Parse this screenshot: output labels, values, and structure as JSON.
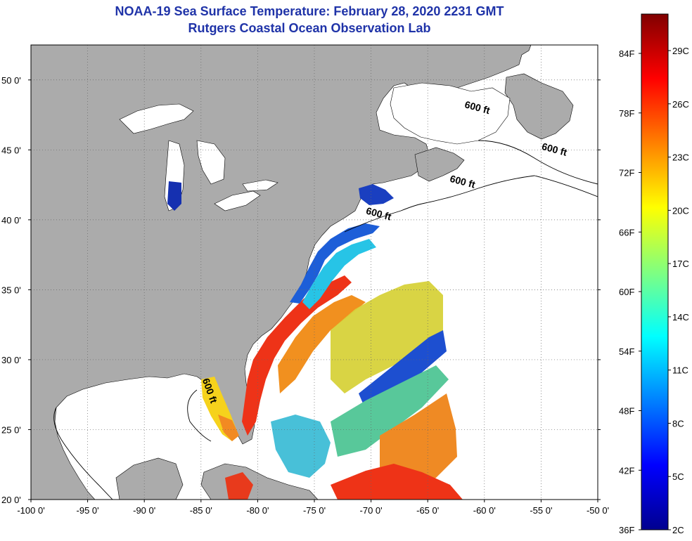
{
  "title": {
    "line1": "NOAA-19 Sea Surface Temperature:  February 28, 2020 2231 GMT",
    "line2": "Rutgers Coastal Ocean Observation Lab"
  },
  "map": {
    "lon_range": [
      -100,
      -50
    ],
    "lat_range": [
      20,
      52.5
    ],
    "grid": "dotted",
    "x_ticks": [
      {
        "value": -100,
        "label": "-100 0'"
      },
      {
        "value": -95,
        "label": "-95 0'"
      },
      {
        "value": -90,
        "label": "-90 0'"
      },
      {
        "value": -85,
        "label": "-85 0'"
      },
      {
        "value": -80,
        "label": "-80 0'"
      },
      {
        "value": -75,
        "label": "-75 0'"
      },
      {
        "value": -70,
        "label": "-70 0'"
      },
      {
        "value": -65,
        "label": "-65 0'"
      },
      {
        "value": -60,
        "label": "-60 0'"
      },
      {
        "value": -55,
        "label": "-55 0'"
      },
      {
        "value": -50,
        "label": "-50 0'"
      }
    ],
    "y_ticks": [
      {
        "value": 20,
        "label": "20 0'"
      },
      {
        "value": 25,
        "label": "25 0'"
      },
      {
        "value": 30,
        "label": "30 0'"
      },
      {
        "value": 35,
        "label": "35 0'"
      },
      {
        "value": 40,
        "label": "40 0'"
      },
      {
        "value": 45,
        "label": "45 0'"
      },
      {
        "value": 50,
        "label": "50 0'"
      }
    ],
    "isobath_labels": [
      {
        "text": "600 ft",
        "lon": -60.7,
        "lat": 47.8
      },
      {
        "text": "600 ft",
        "lon": -53.9,
        "lat": 44.8
      },
      {
        "text": "600 ft",
        "lon": -62.0,
        "lat": 42.5
      },
      {
        "text": "600 ft",
        "lon": -69.4,
        "lat": 40.2
      },
      {
        "text": "600 ft",
        "lon": -84.5,
        "lat": 27.7
      }
    ],
    "colors": {
      "land": "#ababab",
      "no_data_ocean": "#ffffff",
      "title": "#1f33a8"
    }
  },
  "colorbar": {
    "colors": [
      "#00008f",
      "#0000ff",
      "#0080ff",
      "#00ffff",
      "#80ff80",
      "#ffff00",
      "#ff8000",
      "#ff0000",
      "#800000"
    ],
    "fahrenheit_labels": [
      "84F",
      "78F",
      "72F",
      "66F",
      "60F",
      "54F",
      "48F",
      "42F",
      "36F"
    ],
    "celsius_labels": [
      "29C",
      "26C",
      "23C",
      "20C",
      "17C",
      "14C",
      "11C",
      "8C",
      "5C",
      "2C"
    ]
  }
}
